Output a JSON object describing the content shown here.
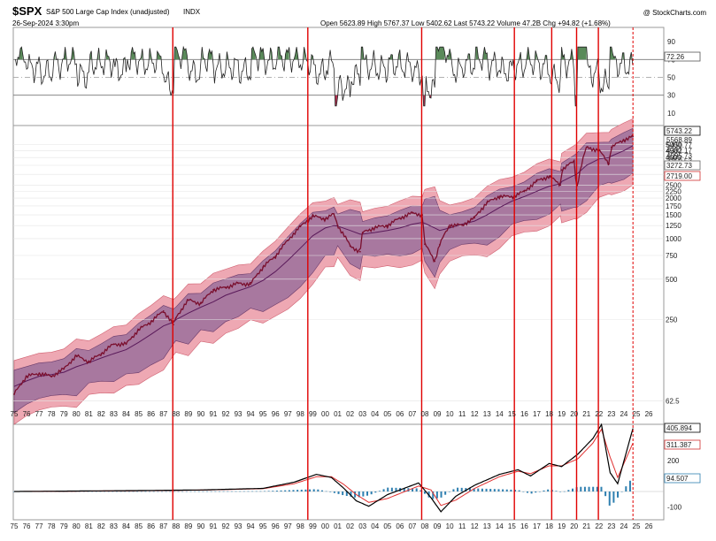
{
  "header": {
    "symbol": "$SPX",
    "name": "S&P 500 Large Cap Index (unadjusted)",
    "exchange": "INDX",
    "date": "26-Sep-2024 3:30pm",
    "watermark": "@ StockCharts.com",
    "ohlc_text": "Open 5623.89  High 5767.37  Low 5402.62  Last 5743.22  Volume 47.2B  Chg +94.82 (+1.68%)"
  },
  "colors": {
    "price_line": "#7a0f2e",
    "outer_band": "#eea8b3",
    "inner_band": "#a8789f",
    "vertical_lines": "#e00000",
    "macd_line": "#000000",
    "signal_line": "#e03030",
    "histogram": "#2e7fb0",
    "rsi_overbought_fill": "#5a8a5a",
    "rsi_oversold_fill": "#b03050"
  },
  "chart_data": [
    {
      "type": "line",
      "panel": "RSI",
      "y_ticks": [
        90,
        70,
        50,
        30,
        10
      ],
      "levels": [
        70,
        30
      ],
      "last_value_label": "72.26",
      "ylim": [
        0,
        100
      ]
    },
    {
      "type": "line",
      "panel": "price",
      "scale": "log",
      "x_ticks": [
        "75",
        "76",
        "77",
        "78",
        "79",
        "80",
        "81",
        "82",
        "83",
        "84",
        "85",
        "86",
        "87",
        "88",
        "89",
        "90",
        "91",
        "92",
        "93",
        "94",
        "95",
        "96",
        "97",
        "98",
        "99",
        "00",
        "01",
        "02",
        "03",
        "04",
        "05",
        "06",
        "07",
        "08",
        "09",
        "10",
        "11",
        "12",
        "13",
        "14",
        "15",
        "16",
        "17",
        "18",
        "19",
        "20",
        "21",
        "22",
        "23",
        "24",
        "25",
        "26"
      ],
      "y_ticks": [
        5000,
        4500,
        4000,
        3500,
        3000,
        2500,
        2250,
        2000,
        1750,
        1500,
        1250,
        1000,
        750,
        500,
        250,
        62.5
      ],
      "labels": [
        "5743.22",
        "3272.73",
        "2719.00"
      ],
      "label_stack_text": "5568.89\n5450.77\n4382.17\n4095.73\n3750.53",
      "x": [
        1975,
        1976,
        1977,
        1978,
        1979,
        1980,
        1981,
        1982,
        1983,
        1984,
        1985,
        1986,
        1987,
        1987.8,
        1988,
        1989,
        1990,
        1991,
        1992,
        1993,
        1994,
        1995,
        1996,
        1997,
        1998,
        1999,
        2000,
        2000.7,
        2001,
        2002,
        2002.8,
        2003,
        2004,
        2005,
        2006,
        2007,
        2007.8,
        2008,
        2008.8,
        2009.2,
        2010,
        2011,
        2012,
        2013,
        2014,
        2015,
        2016,
        2017,
        2018,
        2018.9,
        2019,
        2020,
        2020.2,
        2021,
        2022,
        2022.8,
        2023,
        2024,
        2024.73
      ],
      "series": [
        {
          "name": "",
          "role": "price",
          "values": [
            70,
            95,
            100,
            95,
            108,
            135,
            122,
            140,
            165,
            165,
            210,
            242,
            290,
            230,
            258,
            350,
            330,
            417,
            435,
            466,
            459,
            615,
            740,
            970,
            1229,
            1469,
            1400,
            1520,
            1250,
            880,
            800,
            1110,
            1210,
            1250,
            1420,
            1550,
            1500,
            910,
            680,
            900,
            1257,
            1257,
            1426,
            1848,
            2059,
            2043,
            2238,
            2673,
            2900,
            2500,
            3230,
            3756,
            2300,
            4766,
            4500,
            3600,
            4770,
            5400,
            5743
          ]
        },
        {
          "name": "",
          "role": "moving_average",
          "values": [
            80,
            88,
            95,
            98,
            102,
            112,
            120,
            130,
            140,
            150,
            170,
            195,
            225,
            240,
            250,
            280,
            310,
            340,
            380,
            410,
            440,
            490,
            570,
            690,
            850,
            1050,
            1200,
            1250,
            1240,
            1150,
            1080,
            1080,
            1110,
            1150,
            1200,
            1280,
            1320,
            1300,
            1200,
            1150,
            1200,
            1280,
            1350,
            1500,
            1700,
            1900,
            2050,
            2250,
            2450,
            2550,
            2650,
            2950,
            3000,
            3500,
            3900,
            4000,
            4100,
            4500,
            4900
          ]
        }
      ]
    },
    {
      "type": "line",
      "panel": "MACD",
      "y_ticks": [
        200,
        100,
        -100
      ],
      "labels": [
        "405.894",
        "311.387",
        "94.507"
      ],
      "x": [
        1975,
        1980,
        1985,
        1990,
        1995,
        1997.5,
        1999.3,
        2000.5,
        2001.5,
        2002.5,
        2003.5,
        2005,
        2007.5,
        2008.5,
        2009.3,
        2010.5,
        2012,
        2014,
        2015.5,
        2016.5,
        2018,
        2019,
        2020.3,
        2021.5,
        2022.2,
        2022.9,
        2023.5,
        2024.73
      ],
      "series": [
        {
          "name": "",
          "role": "macd",
          "values": [
            0,
            3,
            6,
            10,
            20,
            60,
            110,
            90,
            20,
            -60,
            -95,
            -20,
            55,
            -40,
            -130,
            -30,
            40,
            110,
            140,
            100,
            180,
            160,
            240,
            340,
            430,
            120,
            50,
            405.894
          ]
        },
        {
          "name": "",
          "role": "signal",
          "values": [
            0,
            2,
            5,
            9,
            18,
            50,
            95,
            95,
            45,
            -20,
            -70,
            -45,
            35,
            10,
            -90,
            -55,
            20,
            95,
            130,
            115,
            165,
            165,
            210,
            310,
            400,
            220,
            90,
            311.387
          ]
        },
        {
          "name": "",
          "role": "histogram",
          "values": [
            0,
            1,
            1,
            1,
            2,
            10,
            15,
            -5,
            -25,
            -40,
            -25,
            25,
            20,
            -50,
            -40,
            25,
            20,
            15,
            10,
            -15,
            15,
            -5,
            30,
            30,
            30,
            -100,
            -40,
            94.507
          ]
        }
      ]
    }
  ],
  "vertical_line_years": [
    1987.75,
    1998.6,
    2007.75,
    2015.2,
    2018.2,
    2020.2,
    2021.95
  ],
  "dashed_line_year": 2024.73
}
